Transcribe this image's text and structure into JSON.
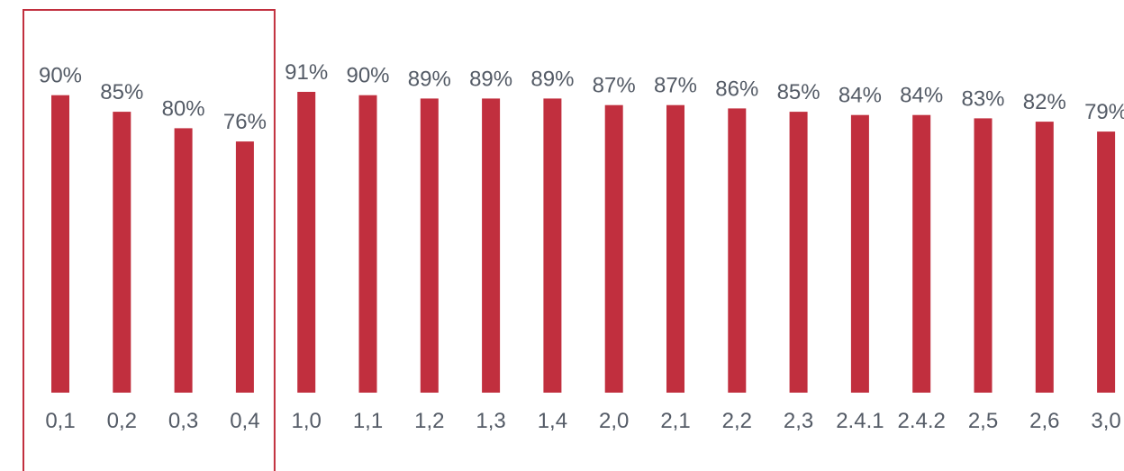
{
  "chart_data": {
    "type": "bar",
    "title": "",
    "xlabel": "",
    "ylabel": "",
    "ylim": [
      0,
      100
    ],
    "grid": false,
    "categories": [
      "0,1",
      "0,2",
      "0,3",
      "0,4",
      "1,0",
      "1,1",
      "1,2",
      "1,3",
      "1,4",
      "2,0",
      "2,1",
      "2,2",
      "2,3",
      "2.4.1",
      "2.4.2",
      "2,5",
      "2,6",
      "3,0"
    ],
    "values": [
      90,
      85,
      80,
      76,
      91,
      90,
      89,
      89,
      89,
      87,
      87,
      86,
      85,
      84,
      84,
      83,
      82,
      79
    ],
    "data_labels": [
      "90%",
      "85%",
      "80%",
      "76%",
      "91%",
      "90%",
      "89%",
      "89%",
      "89%",
      "87%",
      "87%",
      "86%",
      "85%",
      "84%",
      "84%",
      "83%",
      "82%",
      "79%"
    ],
    "highlight": {
      "categories": [
        "0,1",
        "0,2",
        "0,3",
        "0,4"
      ],
      "style": "outlined box"
    }
  },
  "colors": {
    "bar": "#c12f3e",
    "label": "#545b66",
    "highlight_border": "#c12f3e",
    "background": "#ffffff"
  }
}
